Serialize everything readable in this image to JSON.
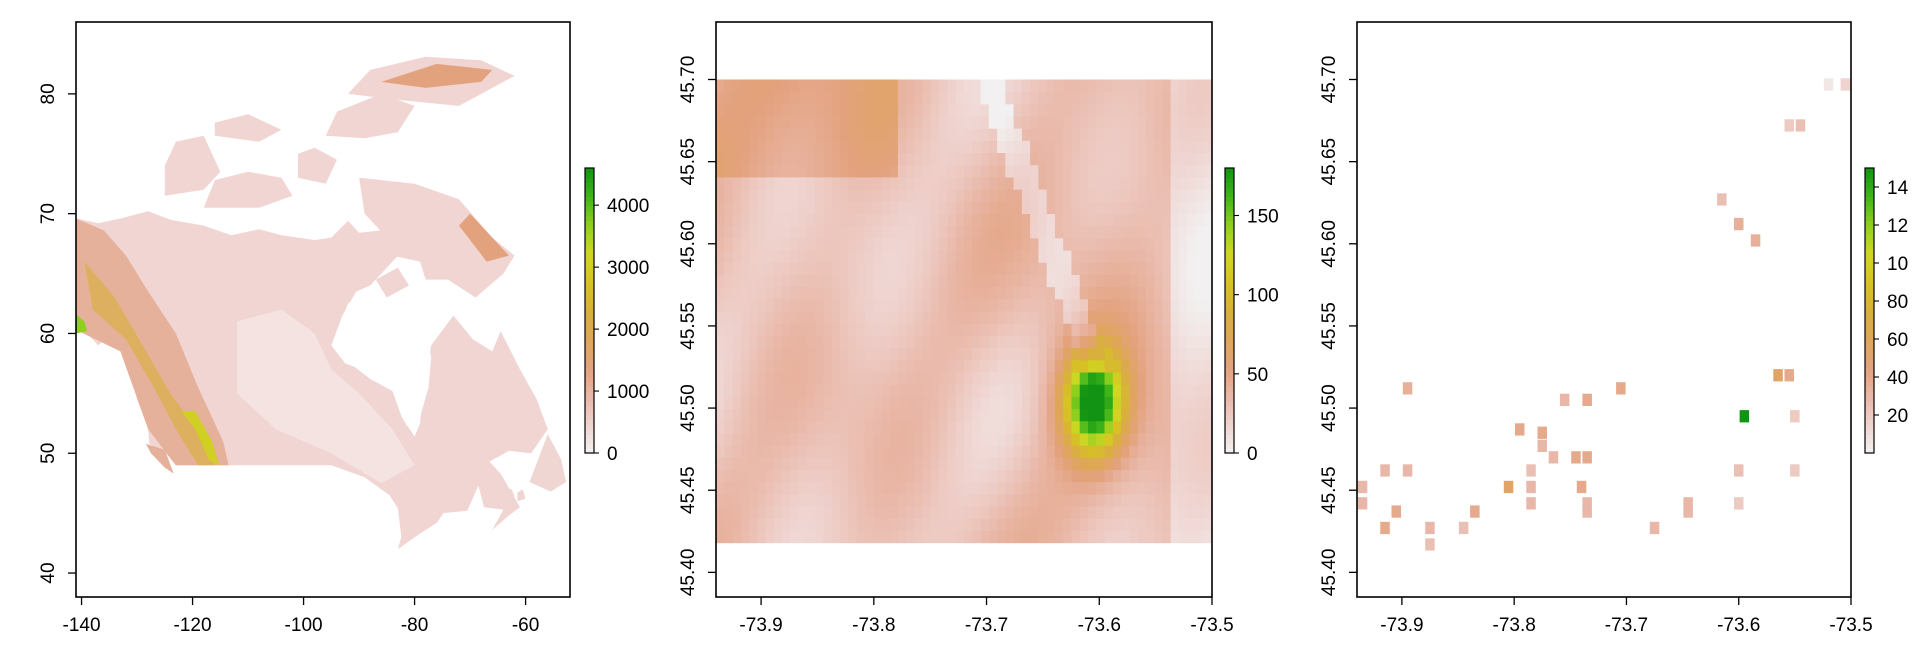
{
  "colors": {
    "ramp": [
      "#f2f2f2",
      "#efd3cf",
      "#e9b7a7",
      "#e3a27e",
      "#dfa65a",
      "#d8b13a",
      "#d7c224",
      "#cfd722",
      "#8fcf1d",
      "#3fb51a",
      "#139313"
    ],
    "frame": "#000000"
  },
  "chart_data": [
    {
      "type": "heatmap",
      "xlim": [
        -141,
        -52
      ],
      "ylim": [
        38,
        86
      ],
      "x_ticks": [
        "-140",
        "-120",
        "-100",
        "-80",
        "-60"
      ],
      "y_ticks": [
        "40",
        "50",
        "60",
        "70",
        "80"
      ],
      "legend": {
        "placement": "right",
        "range": [
          0,
          4600
        ],
        "ticks": [
          "0",
          "1000",
          "2000",
          "3000",
          "4000"
        ]
      }
    },
    {
      "type": "heatmap",
      "xlim": [
        -73.94,
        -73.5
      ],
      "ylim": [
        45.385,
        45.735
      ],
      "x_ticks": [
        "-73.9",
        "-73.8",
        "-73.7",
        "-73.6",
        "-73.5"
      ],
      "y_ticks": [
        "45.40",
        "45.45",
        "45.50",
        "45.55",
        "45.60",
        "45.65",
        "45.70"
      ],
      "legend": {
        "placement": "right",
        "range": [
          0,
          180
        ],
        "ticks": [
          "0",
          "50",
          "100",
          "150"
        ]
      }
    },
    {
      "type": "heatmap",
      "xlim": [
        -73.94,
        -73.5
      ],
      "ylim": [
        45.385,
        45.735
      ],
      "x_ticks": [
        "-73.9",
        "-73.8",
        "-73.7",
        "-73.6",
        "-73.5"
      ],
      "y_ticks": [
        "45.40",
        "45.45",
        "45.50",
        "45.55",
        "45.60",
        "45.65",
        "45.70"
      ],
      "legend": {
        "placement": "right",
        "range": [
          0,
          150
        ],
        "ticks": [
          "20",
          "40",
          "60",
          "80",
          "10",
          "12",
          "14"
        ]
      },
      "cells": [
        {
          "x": -73.52,
          "y": 45.697,
          "v": 5
        },
        {
          "x": -73.505,
          "y": 45.697,
          "v": 15
        },
        {
          "x": -73.545,
          "y": 45.672,
          "v": 25
        },
        {
          "x": -73.555,
          "y": 45.672,
          "v": 20
        },
        {
          "x": -73.615,
          "y": 45.627,
          "v": 25
        },
        {
          "x": -73.6,
          "y": 45.612,
          "v": 35
        },
        {
          "x": -73.585,
          "y": 45.602,
          "v": 35
        },
        {
          "x": -73.565,
          "y": 45.52,
          "v": 55
        },
        {
          "x": -73.555,
          "y": 45.52,
          "v": 40
        },
        {
          "x": -73.595,
          "y": 45.495,
          "v": 150
        },
        {
          "x": -73.55,
          "y": 45.495,
          "v": 20
        },
        {
          "x": -73.6,
          "y": 45.462,
          "v": 25
        },
        {
          "x": -73.55,
          "y": 45.462,
          "v": 20
        },
        {
          "x": -73.6,
          "y": 45.442,
          "v": 20
        },
        {
          "x": -73.895,
          "y": 45.512,
          "v": 35
        },
        {
          "x": -73.755,
          "y": 45.505,
          "v": 30
        },
        {
          "x": -73.735,
          "y": 45.505,
          "v": 40
        },
        {
          "x": -73.705,
          "y": 45.512,
          "v": 40
        },
        {
          "x": -73.795,
          "y": 45.487,
          "v": 40
        },
        {
          "x": -73.775,
          "y": 45.485,
          "v": 40
        },
        {
          "x": -73.775,
          "y": 45.477,
          "v": 30
        },
        {
          "x": -73.765,
          "y": 45.47,
          "v": 30
        },
        {
          "x": -73.745,
          "y": 45.47,
          "v": 40
        },
        {
          "x": -73.735,
          "y": 45.47,
          "v": 40
        },
        {
          "x": -73.915,
          "y": 45.462,
          "v": 30
        },
        {
          "x": -73.895,
          "y": 45.462,
          "v": 30
        },
        {
          "x": -73.785,
          "y": 45.462,
          "v": 25
        },
        {
          "x": -73.74,
          "y": 45.452,
          "v": 40
        },
        {
          "x": -73.805,
          "y": 45.452,
          "v": 55
        },
        {
          "x": -73.785,
          "y": 45.452,
          "v": 30
        },
        {
          "x": -73.935,
          "y": 45.452,
          "v": 30
        },
        {
          "x": -73.935,
          "y": 45.442,
          "v": 30
        },
        {
          "x": -73.785,
          "y": 45.442,
          "v": 30
        },
        {
          "x": -73.735,
          "y": 45.442,
          "v": 30
        },
        {
          "x": -73.645,
          "y": 45.442,
          "v": 30
        },
        {
          "x": -73.905,
          "y": 45.437,
          "v": 40
        },
        {
          "x": -73.835,
          "y": 45.437,
          "v": 40
        },
        {
          "x": -73.735,
          "y": 45.437,
          "v": 30
        },
        {
          "x": -73.645,
          "y": 45.437,
          "v": 30
        },
        {
          "x": -73.915,
          "y": 45.427,
          "v": 40
        },
        {
          "x": -73.875,
          "y": 45.427,
          "v": 30
        },
        {
          "x": -73.845,
          "y": 45.427,
          "v": 25
        },
        {
          "x": -73.675,
          "y": 45.427,
          "v": 30
        },
        {
          "x": -73.875,
          "y": 45.417,
          "v": 25
        }
      ]
    }
  ]
}
